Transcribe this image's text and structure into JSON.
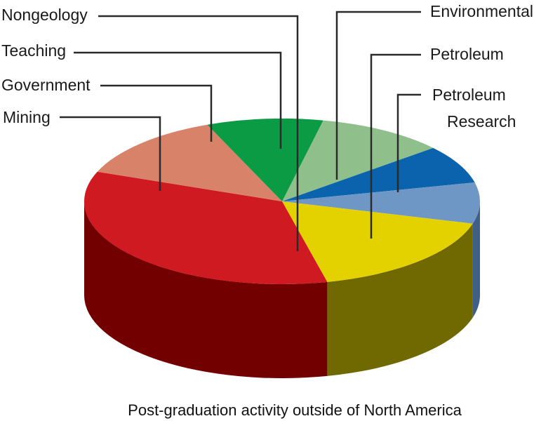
{
  "chart_data": {
    "type": "pie",
    "variant": "3d",
    "title": "Post-graduation activity outside of North America",
    "slices": [
      {
        "label": "Environmental",
        "value": 10.5,
        "color": "#8fbf8a",
        "side_color": "#5a7a56"
      },
      {
        "label": "Petroleum Research",
        "value": 7.5,
        "color": "#0a63ac",
        "side_color": "#063a66"
      },
      {
        "label": "Petroleum",
        "value": 8.0,
        "color": "#6f97c6",
        "side_color": "#3f5f86"
      },
      {
        "label": "Petroleum",
        "value": 17.0,
        "color": "#e4d200",
        "side_color": "#706800"
      },
      {
        "label": "Nongeology",
        "value": 34.5,
        "color": "#d01a22",
        "side_color": "#730000"
      },
      {
        "label": "Mining",
        "value": 13.0,
        "color": "#d9826a",
        "side_color": "#7a4232"
      },
      {
        "label": "Government",
        "value": 9.5,
        "color": "#0c9b45",
        "side_color": "#065a26"
      }
    ]
  }
}
